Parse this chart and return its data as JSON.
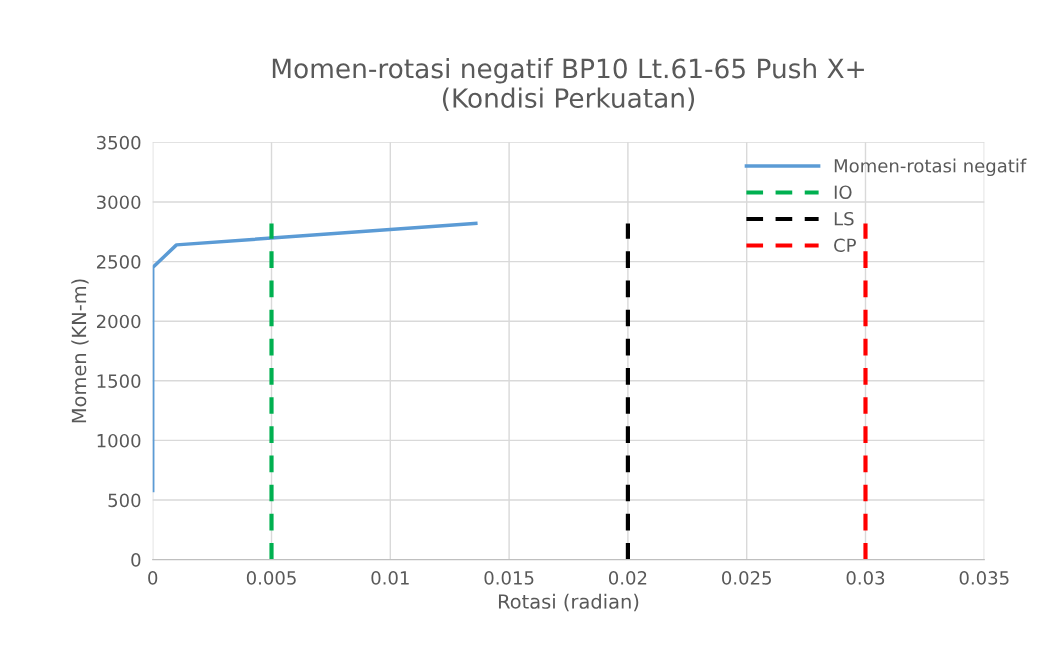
{
  "chart_data": {
    "type": "line",
    "title": "Momen-rotasi negatif BP10 Lt.61-65 Push X+\n(Kondisi Perkuatan)",
    "xlabel": "Rotasi (radian)",
    "ylabel": "Momen (KN-m)",
    "series": [
      {
        "name": "Momen-rotasi negatif",
        "color": "#5b9bd5",
        "x": [
          0,
          0,
          0.001,
          0.0136
        ],
        "values": [
          580,
          2450,
          2640,
          2820
        ],
        "line_style": "solid"
      },
      {
        "name": "IO",
        "color": "#00b050",
        "x": [
          0.005,
          0.005
        ],
        "values": [
          0,
          2820
        ],
        "line_style": "dashed"
      },
      {
        "name": "LS",
        "color": "#000000",
        "x": [
          0.02,
          0.02
        ],
        "values": [
          0,
          2820
        ],
        "line_style": "dashed"
      },
      {
        "name": "CP",
        "color": "#ff0000",
        "x": [
          0.03,
          0.03
        ],
        "values": [
          0,
          2820
        ],
        "line_style": "dashed"
      }
    ],
    "xlim": [
      0,
      0.035
    ],
    "xticks": [
      0,
      0.005,
      0.01,
      0.015,
      0.02,
      0.025,
      0.03,
      0.035
    ],
    "ylim": [
      0,
      3500
    ],
    "yticks": [
      0,
      500,
      1000,
      1500,
      2000,
      2500,
      3000,
      3500
    ],
    "grid": true,
    "legend": "top right"
  }
}
